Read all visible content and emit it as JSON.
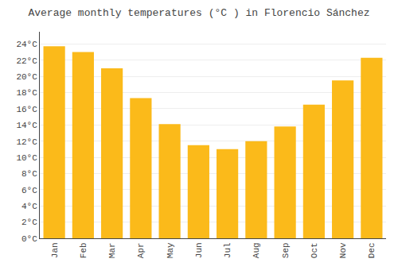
{
  "chart_data": {
    "type": "bar",
    "title": "Average monthly temperatures (°C ) in Florencio Sánchez",
    "categories": [
      "Jan",
      "Feb",
      "Mar",
      "Apr",
      "May",
      "Jun",
      "Jul",
      "Aug",
      "Sep",
      "Oct",
      "Nov",
      "Dec"
    ],
    "values": [
      23.7,
      23.0,
      21.0,
      17.3,
      14.1,
      11.5,
      11.0,
      12.0,
      13.8,
      16.5,
      19.5,
      22.3
    ],
    "color": "#FBBA1A",
    "ylim": [
      0,
      25.5
    ],
    "yticks": [
      {
        "value": 0,
        "label": "0°C"
      },
      {
        "value": 2,
        "label": "2°C"
      },
      {
        "value": 4,
        "label": "4°C"
      },
      {
        "value": 6,
        "label": "6°C"
      },
      {
        "value": 8,
        "label": "8°C"
      },
      {
        "value": 10,
        "label": "10°C"
      },
      {
        "value": 12,
        "label": "12°C"
      },
      {
        "value": 14,
        "label": "14°C"
      },
      {
        "value": 16,
        "label": "16°C"
      },
      {
        "value": 18,
        "label": "18°C"
      },
      {
        "value": 20,
        "label": "20°C"
      },
      {
        "value": 22,
        "label": "22°C"
      },
      {
        "value": 24,
        "label": "24°C"
      }
    ],
    "grid": true
  }
}
